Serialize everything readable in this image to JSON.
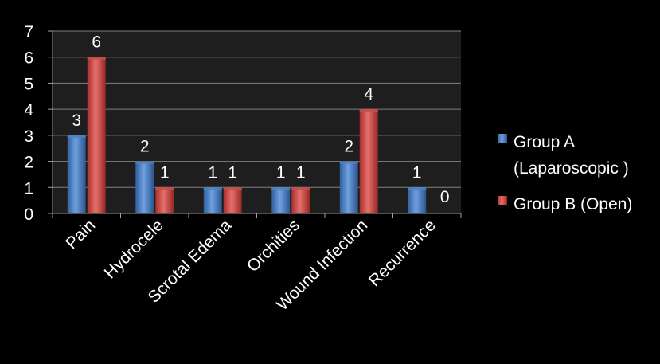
{
  "chart_data": {
    "type": "bar",
    "categories": [
      "Pain",
      "Hydrocele",
      "Scrotal Edema",
      "Orchities",
      "Wound Infection",
      "Recurrence"
    ],
    "series": [
      {
        "name_lines": [
          "Group A",
          "(Laparoscopic )"
        ],
        "values": [
          3,
          2,
          1,
          1,
          2,
          1
        ],
        "color": "#4f81bd"
      },
      {
        "name_lines": [
          "Group B (Open)"
        ],
        "values": [
          6,
          1,
          1,
          1,
          4,
          0
        ],
        "color": "#c0504d"
      }
    ],
    "y_ticks": [
      "0",
      "1",
      "2",
      "3",
      "4",
      "5",
      "6",
      "7"
    ],
    "ylim": [
      0,
      7
    ],
    "grid": true,
    "legend": "right",
    "background": "#000000",
    "text_color": "#ffffff",
    "gridline_color": "#808080"
  }
}
